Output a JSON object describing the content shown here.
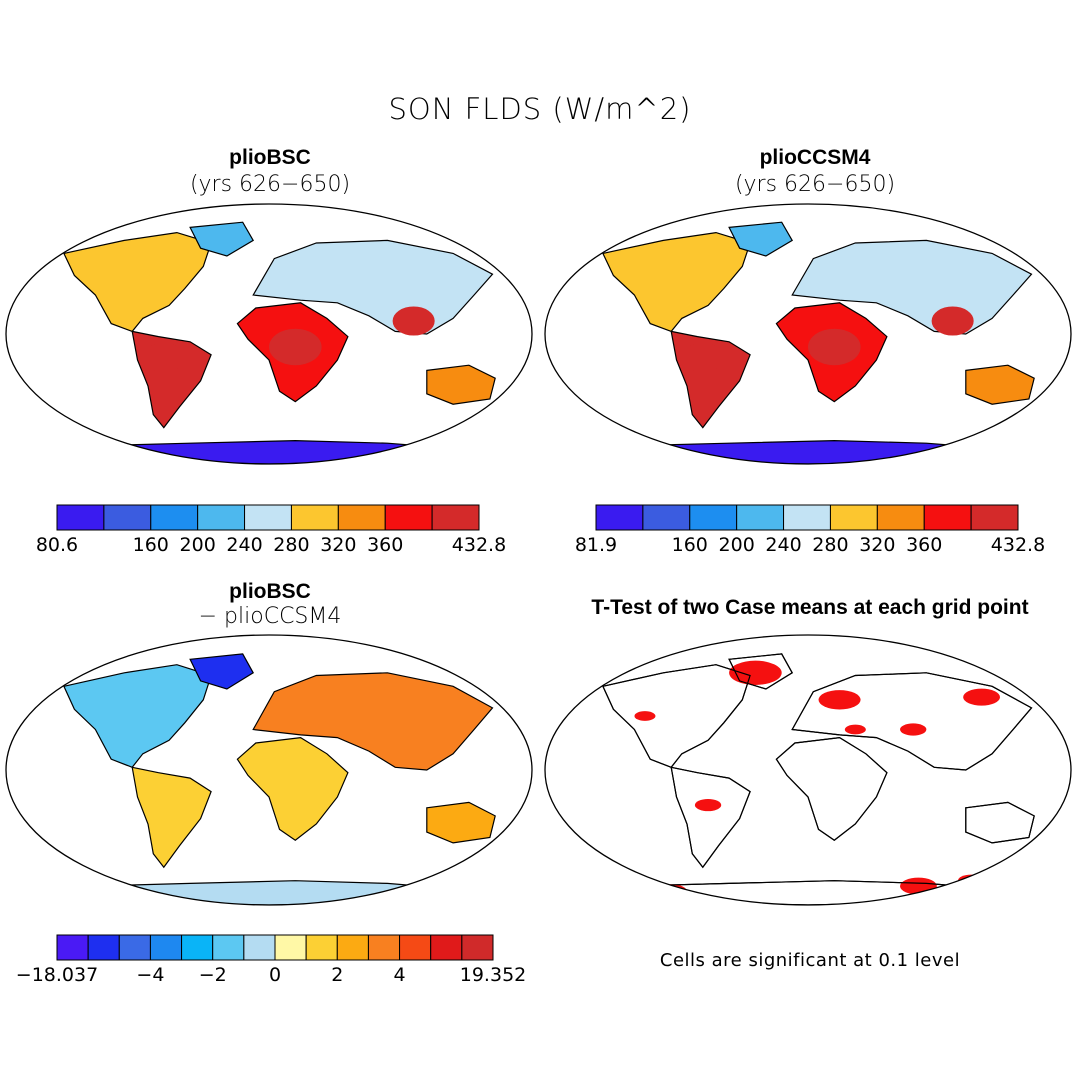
{
  "figure": {
    "title": "SON FLDS (W/m^2)",
    "significance_note": "Cells are significant at 0.1 level"
  },
  "panels": [
    {
      "title": "plioBSC",
      "subtitle": "(yrs 626−650)"
    },
    {
      "title": "plioCCSM4",
      "subtitle": "(yrs 626−650)"
    },
    {
      "title": "plioBSC",
      "subtitle": "− plioCCSM4"
    },
    {
      "title": "T-Test of two Case means at each grid point"
    }
  ],
  "colorbars": {
    "plioBSC": {
      "colors": [
        "#3a1bf0",
        "#3b5ce0",
        "#1d8ef0",
        "#4db8ee",
        "#c3e3f4",
        "#fcc62f",
        "#f78c10",
        "#f51010",
        "#d42a2a"
      ],
      "labels": [
        "80.6",
        "160",
        "200",
        "240",
        "280",
        "320",
        "360",
        "432.8"
      ]
    },
    "plioCCSM4": {
      "colors": [
        "#3a1bf0",
        "#3b5ce0",
        "#1d8ef0",
        "#4db8ee",
        "#c3e3f4",
        "#fcc62f",
        "#f78c10",
        "#f51010",
        "#d42a2a"
      ],
      "labels": [
        "81.9",
        "160",
        "200",
        "240",
        "280",
        "320",
        "360",
        "432.8"
      ]
    },
    "difference": {
      "colors": [
        "#4a1af5",
        "#1e2ff0",
        "#3a6ae6",
        "#1e88f0",
        "#0ab4f7",
        "#5cc8f2",
        "#b4dcf2",
        "#fff8a6",
        "#fcd034",
        "#fcaa12",
        "#f88020",
        "#f54a15",
        "#e01a1a",
        "#d02a2a"
      ],
      "labels": [
        "−18.037",
        "−4",
        "−2",
        "0",
        "2",
        "4",
        "19.352"
      ]
    }
  },
  "chart_data": [
    {
      "type": "heatmap",
      "panel": "plioBSC (yrs 626−650)",
      "variable": "FLDS",
      "season": "SON",
      "units": "W/m^2",
      "years": [
        626,
        650
      ],
      "scale_min": 80.6,
      "scale_max": 432.8,
      "contour_levels": [
        120,
        160,
        200,
        240,
        280,
        320,
        360,
        400
      ]
    },
    {
      "type": "heatmap",
      "panel": "plioCCSM4 (yrs 626−650)",
      "variable": "FLDS",
      "season": "SON",
      "units": "W/m^2",
      "years": [
        626,
        650
      ],
      "scale_min": 81.9,
      "scale_max": 432.8,
      "contour_levels": [
        120,
        160,
        200,
        240,
        280,
        320,
        360,
        400
      ]
    },
    {
      "type": "heatmap",
      "panel": "plioBSC − plioCCSM4",
      "units": "W/m^2",
      "scale_min": -18.037,
      "scale_max": 19.352,
      "contour_levels": [
        -6,
        -5,
        -4,
        -3,
        -2,
        -1,
        0,
        1,
        2,
        3,
        4,
        5,
        6
      ]
    },
    {
      "type": "heatmap",
      "panel": "T-Test of two Case means at each grid point",
      "significance_level": 0.1
    }
  ]
}
